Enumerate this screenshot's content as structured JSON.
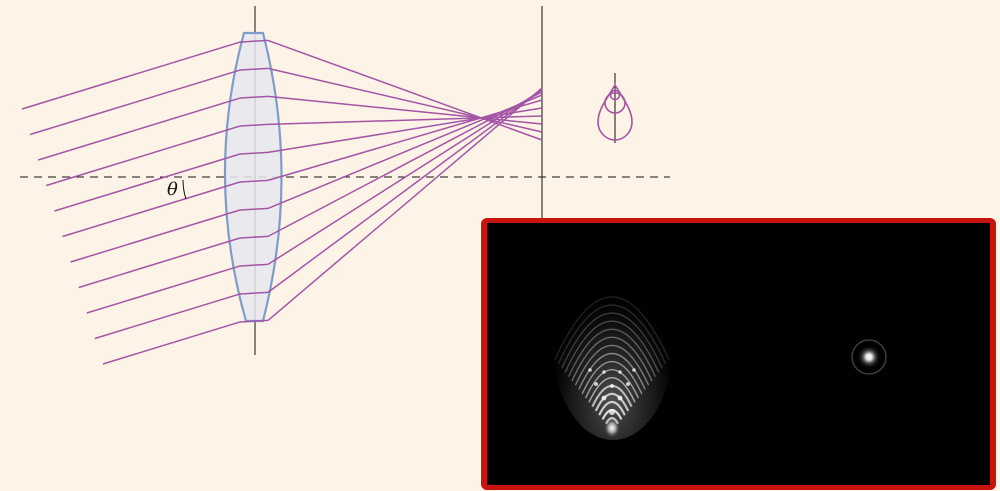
{
  "diagram": {
    "theta_symbol": "θ",
    "colors": {
      "background": "#fdf3e6",
      "ray": "#a455a6",
      "lens_fill": "#e6e7ee",
      "lens_stroke": "#7f9ccb",
      "axis": "#111111",
      "inset_frame": "#c8130f",
      "inset_background": "#000000",
      "spot": "#ffffff"
    },
    "ray_count": 11,
    "optical_axis_style": "dashed",
    "inset": {
      "frame_color": "#c8130f",
      "patterns": [
        "coma-flare",
        "airy-spot"
      ]
    }
  }
}
